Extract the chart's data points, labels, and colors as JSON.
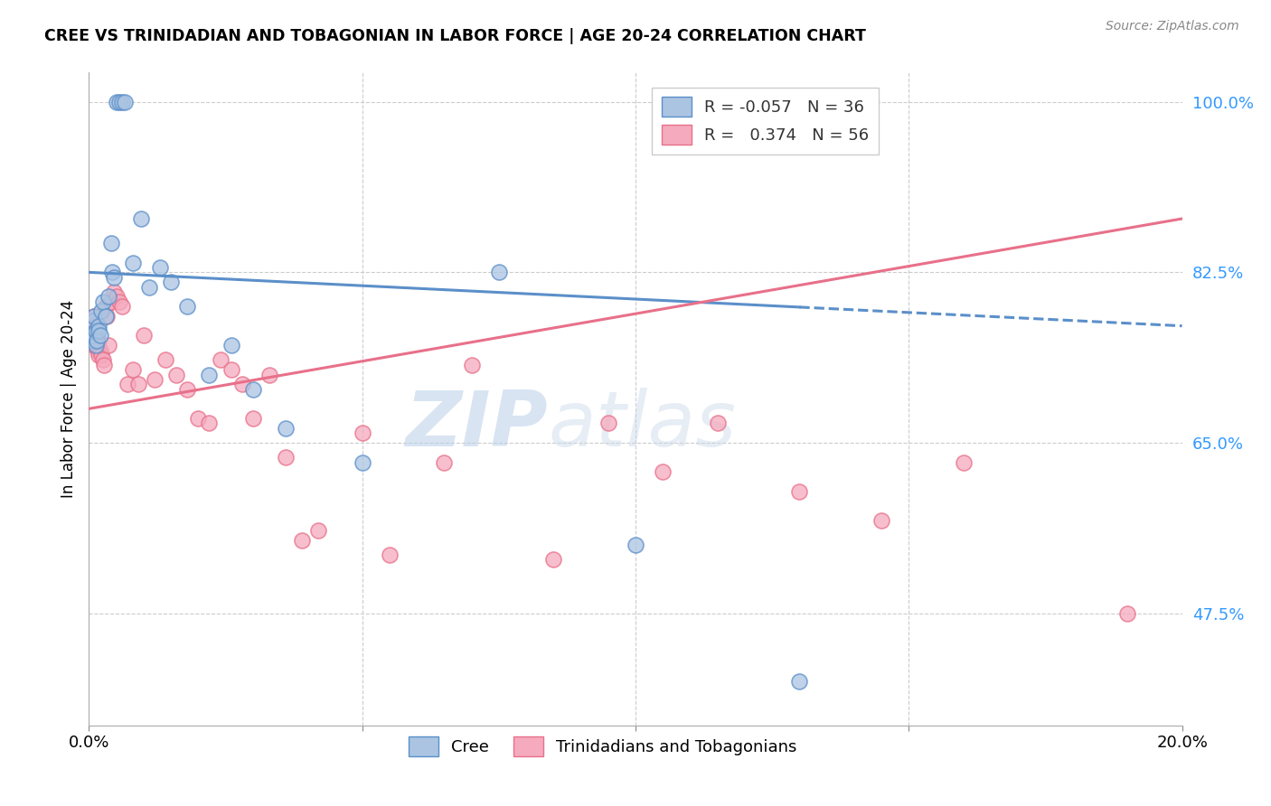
{
  "title": "CREE VS TRINIDADIAN AND TOBAGONIAN IN LABOR FORCE | AGE 20-24 CORRELATION CHART",
  "source": "Source: ZipAtlas.com",
  "ylabel": "In Labor Force | Age 20-24",
  "yticks": [
    47.5,
    65.0,
    82.5,
    100.0
  ],
  "ytick_labels": [
    "47.5%",
    "65.0%",
    "82.5%",
    "100.0%"
  ],
  "xlim": [
    0.0,
    20.0
  ],
  "ylim": [
    36.0,
    103.0
  ],
  "cree_R": -0.057,
  "cree_N": 36,
  "tnt_R": 0.374,
  "tnt_N": 56,
  "cree_color": "#aac4e2",
  "tnt_color": "#f5aabe",
  "cree_line_color": "#5b8fc9",
  "tnt_line_color": "#e8708a",
  "cree_line_y0": 82.5,
  "cree_line_y20": 77.0,
  "tnt_line_y0": 68.5,
  "tnt_line_y20": 88.0,
  "cree_dash_start_x": 13.0,
  "cree_scatter_x": [
    0.05,
    0.07,
    0.08,
    0.1,
    0.1,
    0.12,
    0.13,
    0.15,
    0.17,
    0.18,
    0.2,
    0.22,
    0.25,
    0.3,
    0.35,
    0.4,
    0.42,
    0.45,
    0.5,
    0.55,
    0.6,
    0.65,
    0.8,
    0.95,
    1.1,
    1.3,
    1.5,
    1.8,
    2.2,
    2.6,
    3.0,
    3.6,
    5.0,
    7.5,
    10.0,
    13.0
  ],
  "cree_scatter_y": [
    76.0,
    77.5,
    75.5,
    76.0,
    78.0,
    76.5,
    75.0,
    75.5,
    77.0,
    76.5,
    76.0,
    78.5,
    79.5,
    78.0,
    80.0,
    85.5,
    82.5,
    82.0,
    100.0,
    100.0,
    100.0,
    100.0,
    83.5,
    88.0,
    81.0,
    83.0,
    81.5,
    79.0,
    72.0,
    75.0,
    70.5,
    66.5,
    63.0,
    82.5,
    54.5,
    40.5
  ],
  "tnt_scatter_x": [
    0.05,
    0.06,
    0.07,
    0.08,
    0.09,
    0.1,
    0.11,
    0.12,
    0.13,
    0.14,
    0.15,
    0.16,
    0.17,
    0.18,
    0.2,
    0.22,
    0.25,
    0.28,
    0.3,
    0.32,
    0.35,
    0.4,
    0.45,
    0.5,
    0.55,
    0.6,
    0.7,
    0.8,
    0.9,
    1.0,
    1.2,
    1.4,
    1.6,
    1.8,
    2.0,
    2.2,
    2.4,
    2.6,
    2.8,
    3.0,
    3.3,
    3.6,
    3.9,
    4.2,
    5.0,
    5.5,
    6.5,
    7.0,
    8.5,
    9.5,
    10.5,
    11.5,
    13.0,
    14.5,
    16.0,
    19.0
  ],
  "tnt_scatter_y": [
    77.0,
    76.5,
    76.0,
    75.5,
    75.0,
    78.0,
    77.0,
    76.5,
    76.0,
    75.5,
    75.0,
    74.5,
    74.0,
    75.5,
    74.5,
    74.0,
    73.5,
    73.0,
    79.0,
    78.0,
    75.0,
    79.5,
    80.5,
    80.0,
    79.5,
    79.0,
    71.0,
    72.5,
    71.0,
    76.0,
    71.5,
    73.5,
    72.0,
    70.5,
    67.5,
    67.0,
    73.5,
    72.5,
    71.0,
    67.5,
    72.0,
    63.5,
    55.0,
    56.0,
    66.0,
    53.5,
    63.0,
    73.0,
    53.0,
    67.0,
    62.0,
    67.0,
    60.0,
    57.0,
    63.0,
    47.5
  ],
  "watermark_zip": "ZIP",
  "watermark_atlas": "atlas"
}
